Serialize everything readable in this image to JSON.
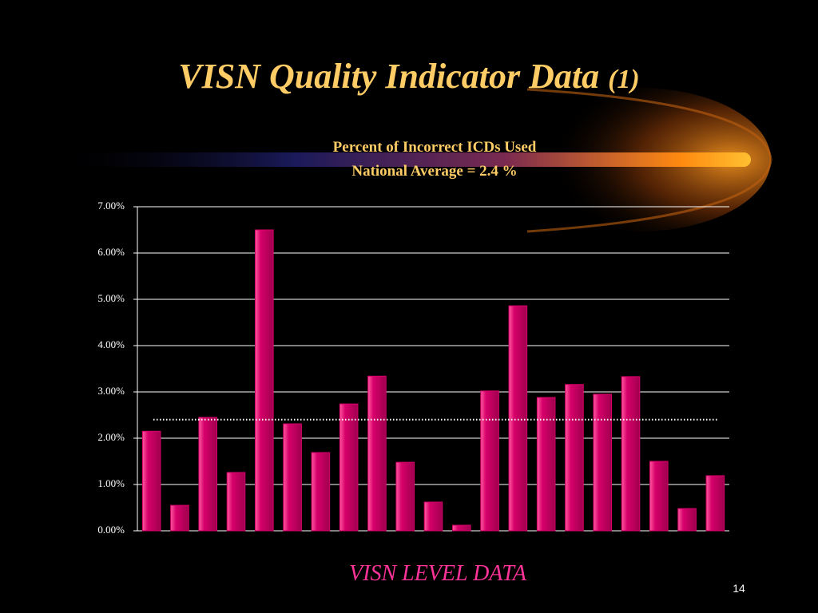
{
  "slide": {
    "title": "VISN Quality Indicator Data",
    "title_number": "(1)",
    "footer": "VISN LEVEL DATA",
    "page_number": "14"
  },
  "chart_data": {
    "type": "bar",
    "title": "Percent of Incorrect ICDs Used",
    "subtitle": "National Average = 2.4 %",
    "values": [
      2.15,
      0.55,
      2.45,
      1.26,
      6.5,
      2.31,
      1.69,
      2.74,
      3.34,
      1.48,
      0.62,
      0.12,
      3.02,
      4.86,
      2.88,
      3.16,
      2.95,
      3.33,
      1.5,
      0.48,
      1.19
    ],
    "color": "#d6006a",
    "average": 2.4,
    "ylim": [
      0,
      7
    ],
    "yticks": [
      {
        "value": 0,
        "label": "0.00%"
      },
      {
        "value": 1,
        "label": "1.00%"
      },
      {
        "value": 2,
        "label": "2.00%"
      },
      {
        "value": 3,
        "label": "3.00%"
      },
      {
        "value": 4,
        "label": "4.00%"
      },
      {
        "value": 5,
        "label": "5.00%"
      },
      {
        "value": 6,
        "label": "6.00%"
      },
      {
        "value": 7,
        "label": "7.00%"
      }
    ],
    "grid": true
  }
}
